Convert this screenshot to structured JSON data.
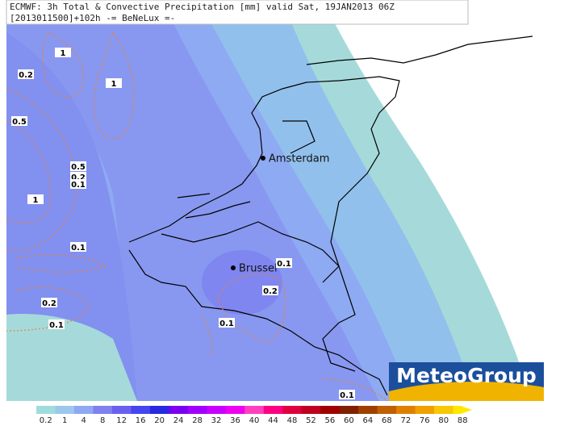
{
  "header": {
    "line1": "ECMWF: 3h Total & Convective Precipitation [mm] valid Sat, 19JAN2013 06Z",
    "line2": "[2013011500]+102h -= BeNeLux =-"
  },
  "cities": [
    "Amsterdam",
    "Brussel"
  ],
  "contour_labels": [
    "1",
    "0.2",
    "1",
    "0.5",
    "0.5",
    "0.2",
    "0.1",
    "1",
    "0.1",
    "0.1",
    "0.2",
    "0.2",
    "0.1",
    "0.1",
    "0.1"
  ],
  "colorbar": {
    "labels": [
      "0.2",
      "1",
      "4",
      "8",
      "12",
      "16",
      "20",
      "24",
      "28",
      "32",
      "36",
      "40",
      "44",
      "48",
      "52",
      "56",
      "60",
      "64",
      "68",
      "72",
      "76",
      "80",
      "88"
    ],
    "colors": [
      "#a0dcdc",
      "#9cc8ee",
      "#8ea8f2",
      "#8080f0",
      "#6a60f0",
      "#4646f0",
      "#2828e0",
      "#7a00f0",
      "#a000ff",
      "#c800ff",
      "#f000f0",
      "#ff40c0",
      "#ff0080",
      "#e00040",
      "#c00020",
      "#a00000",
      "#802000",
      "#a04000",
      "#c06000",
      "#e08000",
      "#f0a000",
      "#f8c800",
      "#ffe800"
    ]
  },
  "logo": "MeteoGroup"
}
